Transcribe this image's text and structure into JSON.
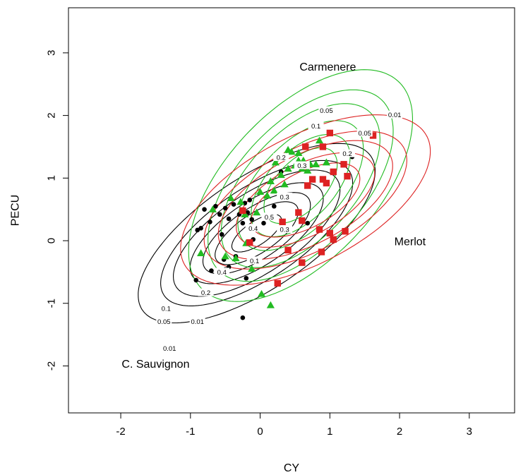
{
  "chart_data": {
    "type": "scatter",
    "xlabel": "CY",
    "ylabel": "PECU",
    "xlim": [
      -2.75,
      3.65
    ],
    "ylim": [
      -2.75,
      3.72
    ],
    "x_ticks": [
      "-2",
      "-1",
      "0",
      "1",
      "2",
      "3"
    ],
    "y_ticks": [
      "-2",
      "-1",
      "0",
      "1",
      "2",
      "3"
    ],
    "x_tick_values": [
      -2,
      -1,
      0,
      1,
      2,
      3
    ],
    "y_tick_values": [
      -2,
      -1,
      0,
      1,
      2,
      3
    ],
    "group_labels": [
      {
        "text": "Carmenere",
        "x": 0.97,
        "y": 2.77,
        "color": "#22bb22"
      },
      {
        "text": "Merlot",
        "x": 2.15,
        "y": -0.02,
        "color": "#dd2222"
      },
      {
        "text": "C. Sauvignon",
        "x": -1.5,
        "y": -1.98,
        "color": "#000000"
      }
    ],
    "groups": [
      {
        "color": "#000000",
        "marker": "circle",
        "center": [
          -0.05,
          0.12
        ],
        "angle_deg": 38,
        "contours": [
          {
            "level": "0.01",
            "a": 2.05,
            "b": 0.86,
            "label_x": -1.3,
            "label_y": -1.72
          },
          {
            "level": "0.05",
            "a": 1.66,
            "b": 0.7,
            "label_x": -1.38,
            "label_y": -1.29
          },
          {
            "level": "0.1",
            "a": 1.44,
            "b": 0.61,
            "label_x": -1.35,
            "label_y": -1.08
          },
          {
            "level": "0.2",
            "a": 1.15,
            "b": 0.49,
            "label_x": -0.78,
            "label_y": -0.83
          },
          {
            "level": "0.3",
            "a": 0.93,
            "b": 0.39,
            "label_x": 0.35,
            "label_y": 0.7
          },
          {
            "level": "0.4",
            "a": 0.72,
            "b": 0.3,
            "label_x": -0.55,
            "label_y": -0.5
          },
          {
            "level": "0.5",
            "a": 0.43,
            "b": 0.18,
            "label_x": 0.13,
            "label_y": 0.38
          }
        ],
        "points": [
          [
            -0.9,
            0.17
          ],
          [
            -0.85,
            0.2
          ],
          [
            -0.8,
            0.5
          ],
          [
            -0.72,
            0.3
          ],
          [
            -0.64,
            0.55
          ],
          [
            -0.58,
            0.42
          ],
          [
            -0.5,
            0.52
          ],
          [
            -0.45,
            0.35
          ],
          [
            -0.38,
            0.58
          ],
          [
            -0.3,
            0.42
          ],
          [
            -0.22,
            0.6
          ],
          [
            -0.15,
            0.65
          ],
          [
            -0.18,
            0.45
          ],
          [
            -0.12,
            0.34
          ],
          [
            -0.25,
            0.28
          ],
          [
            -0.52,
            -0.3
          ],
          [
            -0.45,
            -0.42
          ],
          [
            -0.5,
            -0.46
          ],
          [
            -0.7,
            -0.48
          ],
          [
            -0.92,
            -0.63
          ],
          [
            -0.2,
            -0.6
          ],
          [
            -0.25,
            -1.23
          ],
          [
            0.05,
            0.28
          ],
          [
            0.3,
            1.1
          ],
          [
            0.68,
            0.28
          ],
          [
            1.32,
            1.34
          ],
          [
            -0.1,
            0.02
          ],
          [
            -0.35,
            -0.25
          ],
          [
            -0.55,
            0.1
          ],
          [
            0.2,
            0.55
          ]
        ]
      },
      {
        "color": "#22bb22",
        "marker": "triangle",
        "center": [
          0.58,
          0.88
        ],
        "angle_deg": 52,
        "contours": [
          {
            "level": "0.01",
            "a": 2.18,
            "b": 1.12,
            "label_x": -0.9,
            "label_y": -1.29
          },
          {
            "level": "0.05",
            "a": 1.8,
            "b": 0.93,
            "label_x": 0.95,
            "label_y": 2.08
          },
          {
            "level": "0.1",
            "a": 1.54,
            "b": 0.8,
            "label_x": 0.8,
            "label_y": 1.83
          },
          {
            "level": "0.2",
            "a": 1.22,
            "b": 0.63,
            "label_x": 0.3,
            "label_y": 1.33
          },
          {
            "level": "0.3",
            "a": 0.96,
            "b": 0.5,
            "label_x": 0.6,
            "label_y": 1.2
          },
          {
            "level": "0.4",
            "a": 0.71,
            "b": 0.37,
            "label_x": -0.1,
            "label_y": 0.2
          }
        ],
        "points": [
          [
            -0.85,
            -0.2
          ],
          [
            -0.68,
            0.5
          ],
          [
            -0.5,
            -0.25
          ],
          [
            -0.42,
            0.68
          ],
          [
            -0.35,
            -0.28
          ],
          [
            -0.28,
            0.62
          ],
          [
            -0.22,
            0.42
          ],
          [
            -0.2,
            -0.04
          ],
          [
            -0.12,
            -0.45
          ],
          [
            -0.05,
            0.45
          ],
          [
            0.0,
            0.78
          ],
          [
            0.1,
            0.72
          ],
          [
            0.15,
            0.95
          ],
          [
            0.2,
            0.8
          ],
          [
            0.22,
            1.25
          ],
          [
            0.3,
            1.05
          ],
          [
            0.35,
            0.9
          ],
          [
            0.4,
            1.15
          ],
          [
            0.45,
            1.42
          ],
          [
            0.5,
            1.2
          ],
          [
            0.55,
            1.4
          ],
          [
            0.6,
            1.15
          ],
          [
            0.62,
            1.28
          ],
          [
            0.68,
            1.12
          ],
          [
            0.72,
            1.22
          ],
          [
            0.8,
            1.22
          ],
          [
            0.85,
            1.6
          ],
          [
            0.95,
            1.25
          ],
          [
            1.2,
            1.4
          ],
          [
            1.45,
            1.72
          ],
          [
            0.02,
            -0.85
          ],
          [
            0.15,
            -1.03
          ],
          [
            0.55,
            1.28
          ],
          [
            0.4,
            1.45
          ]
        ]
      },
      {
        "color": "#dd2222",
        "marker": "square",
        "center": [
          0.65,
          0.65
        ],
        "angle_deg": 32,
        "contours": [
          {
            "level": "0.01",
            "a": 2.02,
            "b": 0.99,
            "label_x": 1.93,
            "label_y": 2.01
          },
          {
            "level": "0.05",
            "a": 1.64,
            "b": 0.8,
            "label_x": 1.5,
            "label_y": 1.72
          },
          {
            "level": "0.1",
            "a": 1.41,
            "b": 0.69,
            "label_x": -0.08,
            "label_y": -0.32
          },
          {
            "level": "0.2",
            "a": 1.12,
            "b": 0.55,
            "label_x": 1.25,
            "label_y": 1.39
          },
          {
            "level": "0.3",
            "a": 0.88,
            "b": 0.43,
            "label_x": 0.35,
            "label_y": 0.18
          }
        ],
        "points": [
          [
            -0.25,
            0.48
          ],
          [
            -0.15,
            -0.03
          ],
          [
            0.25,
            -0.68
          ],
          [
            0.32,
            0.3
          ],
          [
            0.4,
            -0.15
          ],
          [
            0.55,
            0.45
          ],
          [
            0.6,
            0.32
          ],
          [
            0.6,
            -0.35
          ],
          [
            0.68,
            0.88
          ],
          [
            0.65,
            1.5
          ],
          [
            0.75,
            0.98
          ],
          [
            0.85,
            0.18
          ],
          [
            0.88,
            -0.18
          ],
          [
            0.9,
            0.98
          ],
          [
            0.9,
            1.5
          ],
          [
            0.95,
            0.92
          ],
          [
            1.0,
            1.72
          ],
          [
            1.0,
            0.12
          ],
          [
            1.05,
            0.02
          ],
          [
            1.05,
            1.1
          ],
          [
            1.2,
            1.22
          ],
          [
            1.22,
            0.15
          ],
          [
            1.25,
            1.03
          ],
          [
            1.62,
            1.68
          ]
        ]
      }
    ]
  }
}
